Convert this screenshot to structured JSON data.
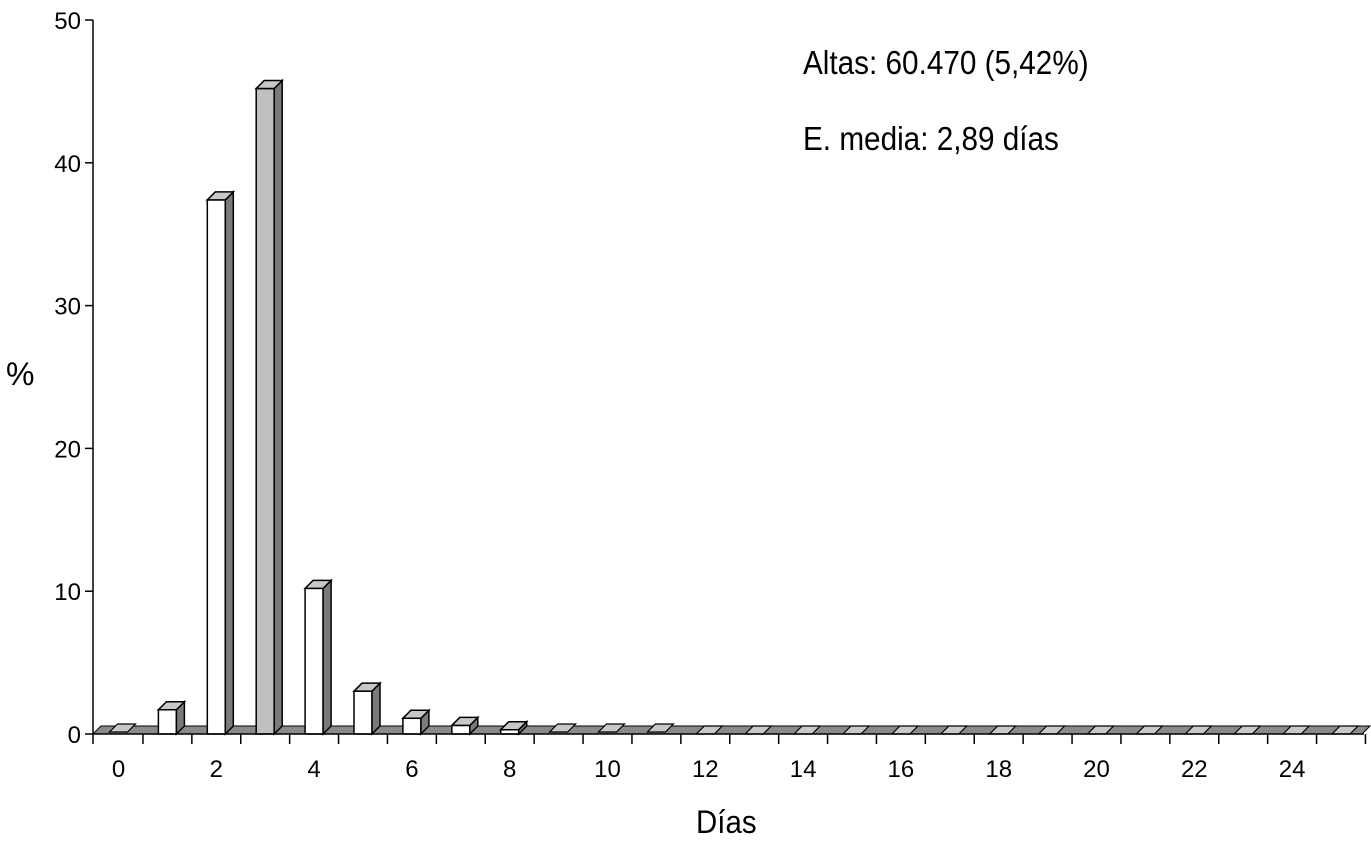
{
  "chart_data": {
    "type": "bar",
    "title": "",
    "xlabel": "Días",
    "ylabel": "%",
    "ylim": [
      0,
      50
    ],
    "xlim": [
      0,
      25
    ],
    "yticks": [
      "0",
      "10",
      "20",
      "30",
      "40",
      "50"
    ],
    "xticks": [
      "0",
      "2",
      "4",
      "6",
      "8",
      "10",
      "12",
      "14",
      "16",
      "18",
      "20",
      "22",
      "24"
    ],
    "categories": [
      0,
      1,
      2,
      3,
      4,
      5,
      6,
      7,
      8,
      9,
      10,
      11,
      12,
      13,
      14,
      15,
      16,
      17,
      18,
      19,
      20,
      21,
      22,
      23,
      24,
      25
    ],
    "values": [
      0.1,
      1.7,
      37.4,
      45.2,
      10.2,
      3.0,
      1.1,
      0.6,
      0.3,
      0.1,
      0.1,
      0.1,
      0,
      0,
      0,
      0,
      0,
      0,
      0,
      0,
      0,
      0,
      0,
      0,
      0,
      0
    ],
    "highlight_category": 3,
    "colors": {
      "bar": "#ffffff",
      "highlight": "#c0c0c0",
      "side": "#7a7a7a",
      "top": "#c8c8c8",
      "floor": "#8a8a8a",
      "stroke": "#000000"
    },
    "grid": false,
    "legend": "none",
    "annotations": [
      "Altas: 60.470 (5,42%)",
      "E. media: 2,89 días"
    ]
  }
}
